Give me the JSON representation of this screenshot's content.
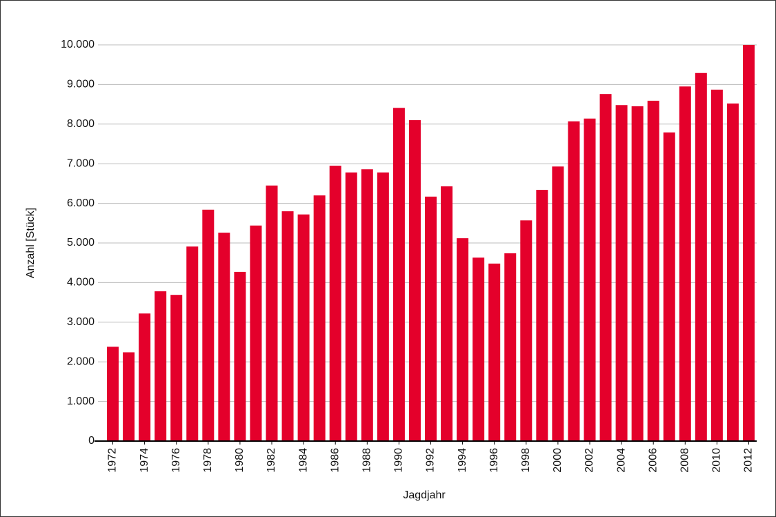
{
  "chart_data": {
    "type": "bar",
    "x_label": "Jagdjahr",
    "y_label": "Anzahl [Stück]",
    "categories": [
      "1972",
      null,
      "1974",
      null,
      "1976",
      null,
      "1978",
      null,
      "1980",
      null,
      "1982",
      null,
      "1984",
      null,
      "1986",
      null,
      "1988",
      null,
      "1990",
      null,
      "1992",
      null,
      "1994",
      null,
      "1996",
      null,
      "1998",
      null,
      "2000",
      null,
      "2002",
      null,
      "2004",
      null,
      "2006",
      null,
      "2008",
      null,
      "2010",
      null,
      "2012"
    ],
    "values": [
      2380,
      2240,
      3220,
      3780,
      3690,
      4910,
      5840,
      5260,
      4270,
      5440,
      6450,
      5800,
      5720,
      6200,
      6950,
      6780,
      6860,
      6780,
      8410,
      8100,
      6170,
      6430,
      5120,
      4630,
      4480,
      4740,
      5570,
      6340,
      6930,
      8070,
      8140,
      8760,
      8480,
      8450,
      8590,
      7790,
      8950,
      9290,
      8870,
      8520,
      10000
    ],
    "color": "#e4002b",
    "ylim": [
      0,
      10000
    ],
    "yticks": [
      0,
      {
        "value": 1000,
        "label": "1.000"
      },
      {
        "value": 2000,
        "label": "2.000"
      },
      {
        "value": 3000,
        "label": "3.000"
      },
      {
        "value": 4000,
        "label": "4.000"
      },
      {
        "value": 5000,
        "label": "5.000"
      },
      {
        "value": 6000,
        "label": "6.000"
      },
      {
        "value": 7000,
        "label": "7.000"
      },
      {
        "value": 8000,
        "label": "8.000"
      },
      {
        "value": 9000,
        "label": "9.000"
      },
      {
        "value": 10000,
        "label": "10.000"
      }
    ],
    "grid": true
  }
}
